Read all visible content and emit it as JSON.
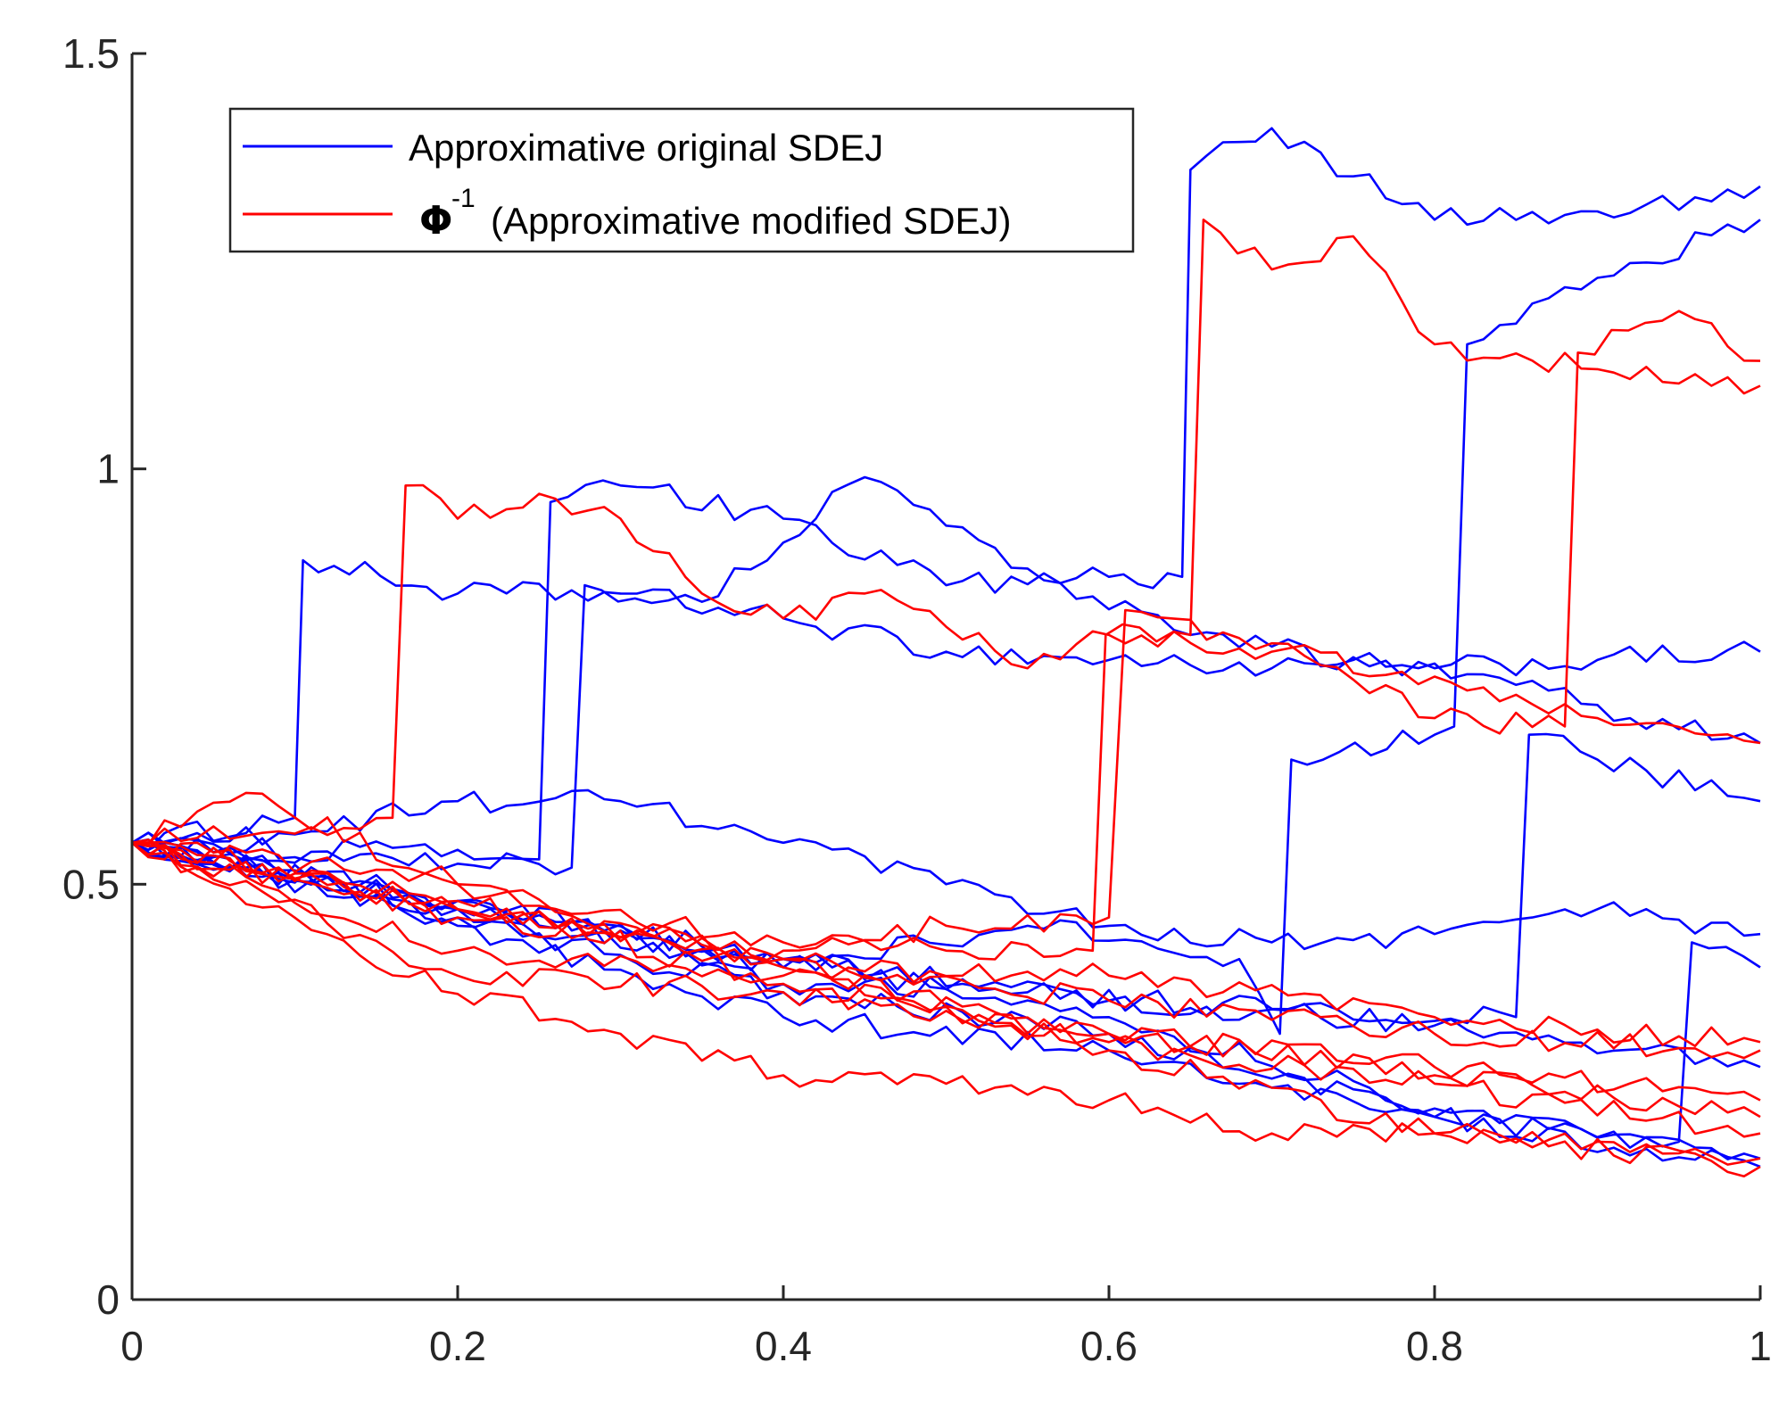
{
  "chart_data": {
    "type": "line",
    "title": "",
    "xlabel": "",
    "ylabel": "",
    "xlim": [
      0,
      1
    ],
    "ylim": [
      0,
      1.5
    ],
    "grid": false,
    "legend_position": "top-left",
    "x_ticks": [
      "0",
      "0.2",
      "0.4",
      "0.6",
      "0.8",
      "1"
    ],
    "y_ticks": [
      "0",
      "0.5",
      "1",
      "1.5"
    ],
    "legend": [
      {
        "symbol": "",
        "superscript": "",
        "label": "Approximative original SDEJ",
        "color": "#0000ff"
      },
      {
        "symbol": "Φ",
        "superscript": "-1",
        "label": "(Approximative modified SDEJ)",
        "color": "#ff0000"
      }
    ],
    "colors": {
      "original": "#0000ff",
      "modified": "#ff0000",
      "axis": "#262626"
    },
    "series": [
      {
        "name": "original-1",
        "group": "original",
        "points": [
          [
            0,
            0.55
          ],
          [
            0.1,
            0.58
          ],
          [
            0.105,
            0.89
          ],
          [
            0.2,
            0.85
          ],
          [
            0.3,
            0.85
          ],
          [
            0.4,
            0.82
          ],
          [
            0.5,
            0.78
          ],
          [
            0.6,
            0.77
          ],
          [
            0.7,
            0.76
          ],
          [
            0.8,
            0.76
          ],
          [
            0.9,
            0.77
          ],
          [
            1.0,
            0.78
          ]
        ]
      },
      {
        "name": "original-2",
        "group": "original",
        "points": [
          [
            0,
            0.55
          ],
          [
            0.1,
            0.56
          ],
          [
            0.2,
            0.6
          ],
          [
            0.3,
            0.6
          ],
          [
            0.4,
            0.55
          ],
          [
            0.5,
            0.5
          ],
          [
            0.6,
            0.45
          ],
          [
            0.7,
            0.43
          ],
          [
            0.8,
            0.44
          ],
          [
            0.9,
            0.47
          ],
          [
            1.0,
            0.44
          ]
        ]
      },
      {
        "name": "original-3",
        "group": "original",
        "points": [
          [
            0,
            0.55
          ],
          [
            0.25,
            0.53
          ],
          [
            0.257,
            0.96
          ],
          [
            0.3,
            0.98
          ],
          [
            0.4,
            0.94
          ],
          [
            0.5,
            0.86
          ],
          [
            0.6,
            0.87
          ],
          [
            0.645,
            0.87
          ],
          [
            0.65,
            1.36
          ],
          [
            0.7,
            1.41
          ],
          [
            0.8,
            1.3
          ],
          [
            0.9,
            1.31
          ],
          [
            1.0,
            1.34
          ]
        ]
      },
      {
        "name": "original-4",
        "group": "original",
        "points": [
          [
            0,
            0.55
          ],
          [
            0.27,
            0.52
          ],
          [
            0.278,
            0.86
          ],
          [
            0.35,
            0.84
          ],
          [
            0.45,
            0.99
          ],
          [
            0.55,
            0.88
          ],
          [
            0.65,
            0.8
          ],
          [
            0.75,
            0.77
          ],
          [
            0.85,
            0.74
          ],
          [
            0.92,
            0.7
          ],
          [
            1.0,
            0.67
          ]
        ]
      },
      {
        "name": "original-5",
        "group": "original",
        "points": [
          [
            0,
            0.55
          ],
          [
            0.2,
            0.48
          ],
          [
            0.4,
            0.4
          ],
          [
            0.55,
            0.45
          ],
          [
            0.68,
            0.41
          ],
          [
            0.705,
            0.32
          ],
          [
            0.712,
            0.65
          ],
          [
            0.8,
            0.68
          ],
          [
            0.812,
            0.69
          ],
          [
            0.82,
            1.15
          ],
          [
            0.9,
            1.23
          ],
          [
            1.0,
            1.3
          ]
        ]
      },
      {
        "name": "original-6",
        "group": "original",
        "points": [
          [
            0,
            0.55
          ],
          [
            0.2,
            0.47
          ],
          [
            0.4,
            0.38
          ],
          [
            0.55,
            0.37
          ],
          [
            0.7,
            0.35
          ],
          [
            0.85,
            0.34
          ],
          [
            0.858,
            0.68
          ],
          [
            0.9,
            0.65
          ],
          [
            1.0,
            0.6
          ]
        ]
      },
      {
        "name": "original-7",
        "group": "original",
        "points": [
          [
            0,
            0.55
          ],
          [
            0.2,
            0.46
          ],
          [
            0.4,
            0.37
          ],
          [
            0.6,
            0.32
          ],
          [
            0.8,
            0.22
          ],
          [
            0.95,
            0.19
          ],
          [
            0.958,
            0.43
          ],
          [
            1.0,
            0.4
          ]
        ]
      },
      {
        "name": "original-8",
        "group": "original",
        "points": [
          [
            0,
            0.55
          ],
          [
            0.2,
            0.47
          ],
          [
            0.4,
            0.41
          ],
          [
            0.6,
            0.36
          ],
          [
            0.8,
            0.33
          ],
          [
            1.0,
            0.28
          ]
        ]
      },
      {
        "name": "original-9",
        "group": "original",
        "points": [
          [
            0,
            0.55
          ],
          [
            0.2,
            0.45
          ],
          [
            0.4,
            0.34
          ],
          [
            0.6,
            0.3
          ],
          [
            0.8,
            0.22
          ],
          [
            1.0,
            0.16
          ]
        ]
      },
      {
        "name": "original-10",
        "group": "original",
        "points": [
          [
            0,
            0.55
          ],
          [
            0.2,
            0.48
          ],
          [
            0.4,
            0.41
          ],
          [
            0.6,
            0.34
          ],
          [
            0.8,
            0.23
          ],
          [
            1.0,
            0.17
          ]
        ]
      },
      {
        "name": "modified-1",
        "group": "modified",
        "points": [
          [
            0,
            0.55
          ],
          [
            0.16,
            0.58
          ],
          [
            0.168,
            0.98
          ],
          [
            0.2,
            0.94
          ],
          [
            0.25,
            0.97
          ],
          [
            0.3,
            0.94
          ],
          [
            0.35,
            0.85
          ],
          [
            0.4,
            0.82
          ],
          [
            0.45,
            0.85
          ],
          [
            0.5,
            0.81
          ],
          [
            0.55,
            0.76
          ],
          [
            0.6,
            0.8
          ],
          [
            0.7,
            0.78
          ],
          [
            0.8,
            0.75
          ],
          [
            0.9,
            0.7
          ],
          [
            1.0,
            0.67
          ]
        ]
      },
      {
        "name": "modified-2",
        "group": "modified",
        "points": [
          [
            0,
            0.55
          ],
          [
            0.2,
            0.5
          ],
          [
            0.4,
            0.43
          ],
          [
            0.5,
            0.42
          ],
          [
            0.59,
            0.42
          ],
          [
            0.598,
            0.8
          ],
          [
            0.65,
            0.8
          ],
          [
            0.658,
            1.3
          ],
          [
            0.7,
            1.24
          ],
          [
            0.75,
            1.28
          ],
          [
            0.8,
            1.15
          ],
          [
            0.9,
            1.12
          ],
          [
            1.0,
            1.1
          ]
        ]
      },
      {
        "name": "modified-3",
        "group": "modified",
        "points": [
          [
            0,
            0.55
          ],
          [
            0.2,
            0.46
          ],
          [
            0.4,
            0.42
          ],
          [
            0.5,
            0.45
          ],
          [
            0.6,
            0.46
          ],
          [
            0.61,
            0.83
          ],
          [
            0.7,
            0.79
          ],
          [
            0.8,
            0.7
          ],
          [
            0.88,
            0.69
          ],
          [
            0.888,
            1.14
          ],
          [
            0.95,
            1.19
          ],
          [
            1.0,
            1.13
          ]
        ]
      },
      {
        "name": "modified-4",
        "group": "modified",
        "points": [
          [
            0,
            0.55
          ],
          [
            0.07,
            0.61
          ],
          [
            0.2,
            0.5
          ],
          [
            0.4,
            0.4
          ],
          [
            0.6,
            0.39
          ],
          [
            0.8,
            0.34
          ],
          [
            1.0,
            0.31
          ]
        ]
      },
      {
        "name": "modified-5",
        "group": "modified",
        "points": [
          [
            0,
            0.55
          ],
          [
            0.2,
            0.47
          ],
          [
            0.4,
            0.41
          ],
          [
            0.6,
            0.36
          ],
          [
            0.8,
            0.32
          ],
          [
            1.0,
            0.3
          ]
        ]
      },
      {
        "name": "modified-6",
        "group": "modified",
        "points": [
          [
            0,
            0.55
          ],
          [
            0.2,
            0.42
          ],
          [
            0.4,
            0.39
          ],
          [
            0.6,
            0.31
          ],
          [
            0.8,
            0.26
          ],
          [
            1.0,
            0.2
          ]
        ]
      },
      {
        "name": "modified-7",
        "group": "modified",
        "points": [
          [
            0,
            0.55
          ],
          [
            0.2,
            0.39
          ],
          [
            0.4,
            0.37
          ],
          [
            0.6,
            0.32
          ],
          [
            0.8,
            0.28
          ],
          [
            1.0,
            0.24
          ]
        ]
      },
      {
        "name": "modified-8",
        "group": "modified",
        "points": [
          [
            0,
            0.55
          ],
          [
            0.15,
            0.4
          ],
          [
            0.3,
            0.32
          ],
          [
            0.4,
            0.27
          ],
          [
            0.5,
            0.26
          ],
          [
            0.6,
            0.24
          ],
          [
            0.7,
            0.2
          ],
          [
            0.8,
            0.2
          ],
          [
            0.9,
            0.19
          ],
          [
            1.0,
            0.17
          ]
        ]
      },
      {
        "name": "modified-9",
        "group": "modified",
        "points": [
          [
            0,
            0.55
          ],
          [
            0.2,
            0.48
          ],
          [
            0.4,
            0.38
          ],
          [
            0.6,
            0.32
          ],
          [
            0.8,
            0.27
          ],
          [
            1.0,
            0.22
          ]
        ]
      },
      {
        "name": "modified-10",
        "group": "modified",
        "points": [
          [
            0,
            0.55
          ],
          [
            0.2,
            0.47
          ],
          [
            0.4,
            0.41
          ],
          [
            0.6,
            0.3
          ],
          [
            0.8,
            0.2
          ],
          [
            1.0,
            0.16
          ]
        ]
      }
    ]
  }
}
